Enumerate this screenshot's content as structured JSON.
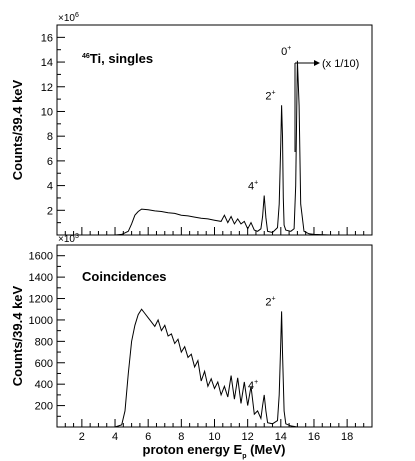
{
  "chart_data": [
    {
      "type": "line",
      "title": "Ti, singles",
      "title_superscript": "46",
      "ylabel": "Counts/39.4 keV",
      "y_multiplier": "×10",
      "y_multiplier_exp": "6",
      "xlim": [
        0.5,
        19.5
      ],
      "ylim": [
        0,
        17
      ],
      "yticks": [
        2,
        4,
        6,
        8,
        10,
        12,
        14,
        16
      ],
      "xticks": [
        2,
        4,
        6,
        8,
        10,
        12,
        14,
        16,
        18
      ],
      "scale_note": "(x 1/10)",
      "series": [
        {
          "x": [
            4.0,
            4.4,
            4.8,
            5.0,
            5.2,
            5.4,
            5.6,
            6.0,
            6.4,
            6.8,
            7.2,
            7.6,
            8.0,
            8.4,
            8.8,
            9.2,
            9.6,
            10.0,
            10.4,
            10.6,
            10.8,
            11.0,
            11.2,
            11.4,
            11.6,
            11.8,
            12.0,
            12.2,
            12.4,
            12.6,
            12.8,
            12.9,
            13.0,
            13.1,
            13.2,
            13.5,
            13.8,
            13.9,
            14.0,
            14.05,
            14.1,
            14.15,
            14.2,
            14.3,
            14.6,
            14.8,
            14.9,
            15.0,
            15.1,
            15.2,
            15.4,
            15.7,
            16.0,
            17.0,
            18.0,
            19.5
          ],
          "values": [
            0,
            0.05,
            0.3,
            0.9,
            1.6,
            1.9,
            2.1,
            2.05,
            1.95,
            1.9,
            1.8,
            1.75,
            1.6,
            1.55,
            1.45,
            1.35,
            1.3,
            1.2,
            1.1,
            1.6,
            1.0,
            1.5,
            0.9,
            1.3,
            0.9,
            1.1,
            0.5,
            1.0,
            0.4,
            0.3,
            0.5,
            1.5,
            3.2,
            1.4,
            0.3,
            0.2,
            0.6,
            2.5,
            7.5,
            10.5,
            8.0,
            3.0,
            0.8,
            0.4,
            0.3,
            0.5,
            4.0,
            14.1,
            10.5,
            2.5,
            0.3,
            0.1,
            0.05,
            0,
            0,
            0
          ]
        }
      ],
      "annotations": [
        {
          "text": "4",
          "sup": "+",
          "x": 13.0,
          "y": 3.2
        },
        {
          "text": "2",
          "sup": "+",
          "x": 14.05,
          "y": 10.5
        },
        {
          "text": "0",
          "sup": "+",
          "x": 15.0,
          "y": 14.1
        }
      ]
    },
    {
      "type": "line",
      "title": "Coincidences",
      "ylabel": "Counts/39.4 keV",
      "xlabel": "proton energy E",
      "xlabel_subscript": "p",
      "xlabel_unit": " (MeV)",
      "y_multiplier": "×10",
      "y_multiplier_exp": "3",
      "xlim": [
        0.5,
        19.5
      ],
      "ylim": [
        0,
        1700
      ],
      "yticks": [
        200,
        400,
        600,
        800,
        1000,
        1200,
        1400,
        1600
      ],
      "xticks": [
        2,
        4,
        6,
        8,
        10,
        12,
        14,
        16,
        18
      ],
      "series": [
        {
          "x": [
            4.0,
            4.4,
            4.6,
            4.8,
            5.0,
            5.2,
            5.4,
            5.6,
            5.8,
            6.0,
            6.2,
            6.4,
            6.6,
            6.8,
            7.0,
            7.2,
            7.4,
            7.6,
            7.8,
            8.0,
            8.2,
            8.4,
            8.6,
            8.8,
            9.0,
            9.2,
            9.4,
            9.6,
            9.8,
            10.0,
            10.2,
            10.4,
            10.6,
            10.8,
            11.0,
            11.2,
            11.4,
            11.6,
            11.8,
            12.0,
            12.2,
            12.4,
            12.6,
            12.8,
            12.9,
            13.0,
            13.1,
            13.2,
            13.5,
            13.8,
            13.9,
            14.0,
            14.05,
            14.1,
            14.2,
            14.3,
            14.6,
            15.0,
            16.0,
            19.5
          ],
          "values": [
            0,
            20,
            150,
            500,
            800,
            950,
            1050,
            1100,
            1060,
            1020,
            980,
            940,
            1000,
            900,
            950,
            850,
            870,
            780,
            820,
            700,
            750,
            650,
            680,
            560,
            620,
            430,
            520,
            380,
            450,
            360,
            420,
            300,
            380,
            280,
            480,
            260,
            460,
            220,
            420,
            200,
            380,
            120,
            150,
            80,
            200,
            300,
            150,
            40,
            30,
            60,
            300,
            800,
            1080,
            700,
            150,
            30,
            10,
            0,
            0,
            0
          ]
        }
      ],
      "annotations": [
        {
          "text": "4",
          "sup": "+",
          "x": 13.0,
          "y": 300
        },
        {
          "text": "2",
          "sup": "+",
          "x": 14.05,
          "y": 1080
        }
      ]
    }
  ]
}
